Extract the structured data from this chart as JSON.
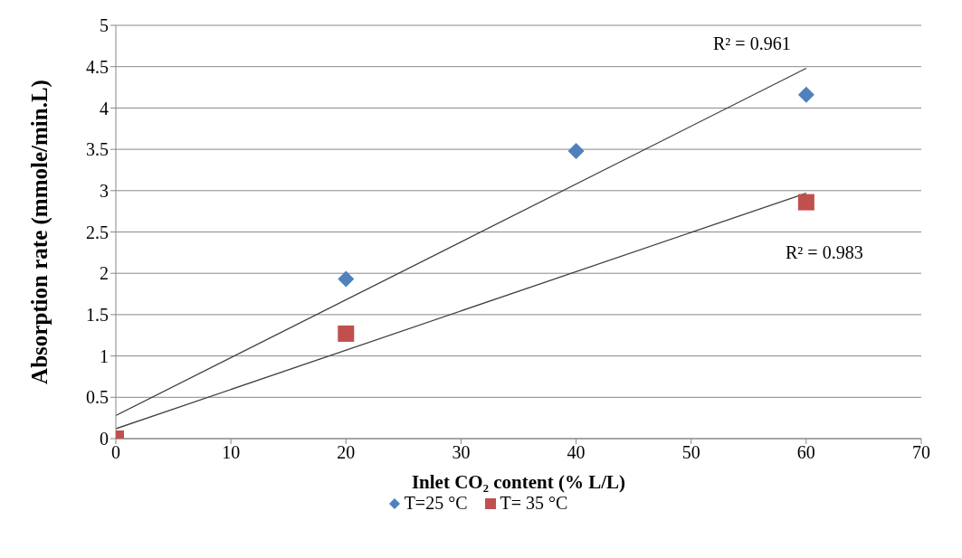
{
  "chart_data": {
    "type": "scatter",
    "xlabel": "Inlet CO₂ content (% L/L)",
    "ylabel": "Absorption rate (mmole/min.L)",
    "xlim": [
      0,
      70
    ],
    "xticks": [
      0,
      10,
      20,
      30,
      40,
      50,
      60,
      70
    ],
    "ylim": [
      0,
      5
    ],
    "yticks": [
      0,
      0.5,
      1,
      1.5,
      2,
      2.5,
      3,
      3.5,
      4,
      4.5,
      5
    ],
    "grid": "y",
    "legend": "bottom",
    "series": [
      {
        "name": "T=25 °C",
        "color": "#4f81bd",
        "marker": "diamond",
        "x": [
          20,
          40,
          60
        ],
        "values": [
          1.93,
          3.48,
          4.16
        ]
      },
      {
        "name": "T= 35 °C",
        "color": "#c0504d",
        "marker": "square",
        "x": [
          0,
          20,
          60
        ],
        "values": [
          0,
          1.27,
          2.86
        ]
      },
      {
        "type": "line",
        "color": "#404040",
        "marker": "none",
        "x": [
          0,
          60
        ],
        "values": [
          0.28,
          4.48
        ]
      },
      {
        "type": "line",
        "color": "#404040",
        "marker": "none",
        "x": [
          0,
          60
        ],
        "values": [
          0.12,
          2.97
        ]
      }
    ],
    "annotations": [
      "R² = 0.961",
      "R² = 0.983"
    ]
  }
}
